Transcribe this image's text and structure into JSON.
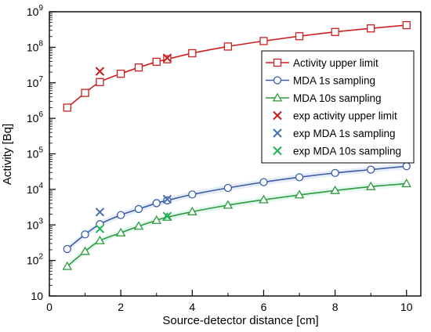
{
  "chart_data": {
    "type": "line",
    "xlabel": "Source-detector distance [cm]",
    "ylabel": "Activity [Bq]",
    "x_range": [
      0,
      10.4
    ],
    "y_range": [
      10,
      1000000000
    ],
    "y_scale": "log",
    "x_ticks": [
      0,
      2,
      4,
      6,
      8,
      10
    ],
    "y_ticks": [
      {
        "value": 10,
        "base": "10",
        "exp": ""
      },
      {
        "value": 100,
        "base": "10",
        "exp": "2"
      },
      {
        "value": 1000,
        "base": "10",
        "exp": "3"
      },
      {
        "value": 10000,
        "base": "10",
        "exp": "4"
      },
      {
        "value": 100000,
        "base": "10",
        "exp": "5"
      },
      {
        "value": 1000000,
        "base": "10",
        "exp": "6"
      },
      {
        "value": 10000000,
        "base": "10",
        "exp": "7"
      },
      {
        "value": 100000000,
        "base": "10",
        "exp": "8"
      },
      {
        "value": 1000000000,
        "base": "10",
        "exp": "9"
      }
    ],
    "grid": false,
    "legend_position": "right",
    "series": [
      {
        "name": "Activity upper limit",
        "color": "#cc1f1f",
        "marker": "square",
        "line": true,
        "x": [
          0.5,
          1,
          1.414,
          2,
          2.5,
          3,
          3.3,
          4,
          5,
          6,
          7,
          8,
          9,
          10
        ],
        "y": [
          2000000,
          5200000,
          10500000,
          18000000,
          27000000,
          39000000,
          46000000,
          68000000,
          105000000,
          150000000,
          205000000,
          270000000,
          340000000,
          420000000
        ]
      },
      {
        "name": "MDA 1s sampling",
        "color": "#3b5ba5",
        "marker": "circle",
        "line": true,
        "x": [
          0.5,
          1,
          1.414,
          2,
          2.5,
          3,
          3.3,
          4,
          5,
          6,
          7,
          8,
          9,
          10
        ],
        "y": [
          210,
          540,
          1050,
          1900,
          2800,
          4100,
          4900,
          7200,
          11000,
          16000,
          22000,
          29000,
          36000,
          45000
        ]
      },
      {
        "name": "MDA 10s sampling",
        "color": "#2e9a3e",
        "marker": "triangle",
        "line": true,
        "x": [
          0.5,
          1,
          1.414,
          2,
          2.5,
          3,
          3.3,
          4,
          5,
          6,
          7,
          8,
          9,
          10
        ],
        "y": [
          68,
          180,
          360,
          600,
          920,
          1350,
          1650,
          2350,
          3600,
          5100,
          7000,
          9300,
          12000,
          14500
        ]
      },
      {
        "name": "exp activity upper limit",
        "color": "#c81e1e",
        "marker": "x",
        "line": false,
        "x": [
          1.414,
          3.3
        ],
        "y": [
          21000000,
          50000000
        ]
      },
      {
        "name": "exp MDA 1s sampling",
        "color": "#4a6fb5",
        "marker": "x",
        "line": false,
        "x": [
          1.414,
          3.3
        ],
        "y": [
          2300,
          5300
        ]
      },
      {
        "name": "exp MDA 10s sampling",
        "color": "#22b558",
        "marker": "x",
        "line": false,
        "x": [
          1.414,
          3.3
        ],
        "y": [
          780,
          1750
        ]
      }
    ]
  }
}
